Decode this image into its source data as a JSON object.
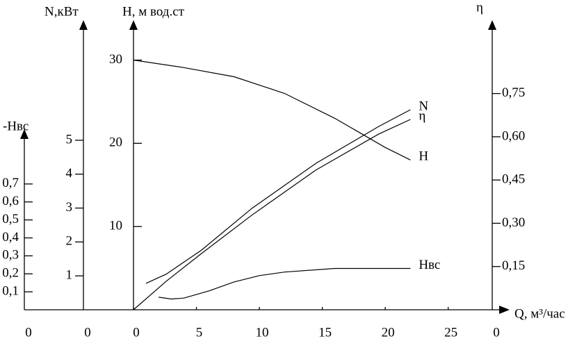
{
  "chart_data": {
    "type": "line",
    "x_label": "Q, м³/час",
    "xlim": [
      0,
      28.5
    ],
    "xticks": [
      0,
      5,
      10,
      15,
      20,
      25
    ],
    "axes": {
      "hvs": {
        "label": "-Hвс",
        "ylim": [
          0,
          0.97
        ],
        "yticks": [
          {
            "value": 0,
            "label": "0"
          },
          {
            "value": 0.1,
            "label": "0,1"
          },
          {
            "value": 0.2,
            "label": "0,2"
          },
          {
            "value": 0.3,
            "label": "0,3"
          },
          {
            "value": 0.4,
            "label": "0,4"
          },
          {
            "value": 0.5,
            "label": "0,5"
          },
          {
            "value": 0.6,
            "label": "0,6"
          },
          {
            "value": 0.7,
            "label": "0,7"
          }
        ]
      },
      "n": {
        "label": "N,кВт",
        "ylim": [
          0,
          8.42
        ],
        "yticks": [
          0,
          1,
          2,
          3,
          4,
          5
        ]
      },
      "h": {
        "label": "H, м вод.ст",
        "ylim": [
          0,
          34.3
        ],
        "yticks": [
          10,
          20,
          30
        ]
      },
      "eta": {
        "label": "η",
        "ylim": [
          0,
          0.99
        ],
        "yticks": [
          {
            "value": 0,
            "label": "0"
          },
          {
            "value": 0.15,
            "label": "0,15"
          },
          {
            "value": 0.3,
            "label": "0,30"
          },
          {
            "value": 0.45,
            "label": "0,45"
          },
          {
            "value": 0.6,
            "label": "0,60"
          },
          {
            "value": 0.75,
            "label": "0,75"
          }
        ]
      }
    },
    "series": [
      {
        "name": "N",
        "axis": "n",
        "color": "#000000",
        "x": [
          1,
          2.6,
          5.4,
          9.4,
          14.5,
          19.5,
          22
        ],
        "values": [
          0.78,
          1.05,
          1.76,
          2.99,
          4.32,
          5.41,
          5.9
        ]
      },
      {
        "name": "η",
        "axis": "eta",
        "color": "#000000",
        "x": [
          0,
          2.6,
          5.4,
          9.4,
          14.5,
          19.5,
          22
        ],
        "values": [
          0,
          0.099,
          0.195,
          0.328,
          0.485,
          0.61,
          0.66
        ]
      },
      {
        "name": "H",
        "axis": "h",
        "color": "#000000",
        "x": [
          0,
          4,
          8,
          12,
          16,
          20,
          22
        ],
        "values": [
          30,
          29.1,
          28,
          26,
          23,
          19.5,
          18
        ]
      },
      {
        "name": "Hвс",
        "axis": "hvs",
        "color": "#000000",
        "x": [
          2,
          3,
          4,
          6,
          8,
          10,
          12,
          16,
          20,
          22
        ],
        "values": [
          0.07,
          0.06,
          0.065,
          0.105,
          0.155,
          0.19,
          0.21,
          0.23,
          0.23,
          0.23
        ]
      }
    ]
  }
}
